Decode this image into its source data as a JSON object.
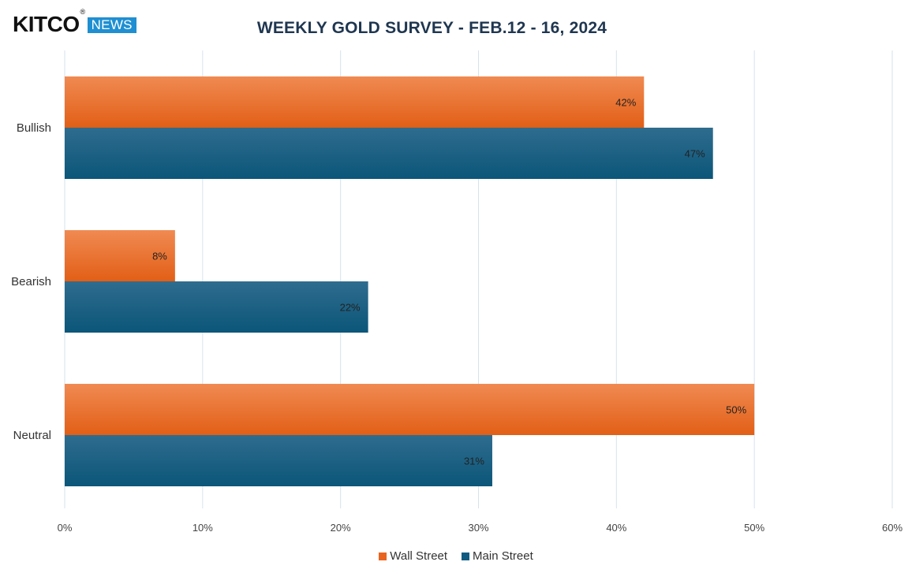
{
  "brand": {
    "name": "KITCO",
    "reg_mark": "®",
    "badge": "NEWS"
  },
  "colors": {
    "wall_street": "#e8641f",
    "main_street": "#0f5a80",
    "title": "#1f3650",
    "grid": "#d6e2ee",
    "badge": "#1f8fd2"
  },
  "chart_data": {
    "type": "bar",
    "orientation": "horizontal",
    "title": "WEEKLY GOLD SURVEY - FEB.12 - 16, 2024",
    "categories": [
      "Bullish",
      "Bearish",
      "Neutral"
    ],
    "series": [
      {
        "name": "Wall Street",
        "values": [
          42,
          8,
          50
        ],
        "labels": [
          "42%",
          "8%",
          "50%"
        ]
      },
      {
        "name": "Main Street",
        "values": [
          47,
          22,
          31
        ],
        "labels": [
          "47%",
          "22%",
          "31%"
        ]
      }
    ],
    "xlim": [
      0,
      60
    ],
    "xticks": [
      0,
      10,
      20,
      30,
      40,
      50,
      60
    ],
    "xtick_labels": [
      "0%",
      "10%",
      "20%",
      "30%",
      "40%",
      "50%",
      "60%"
    ],
    "grid": true,
    "legend_position": "bottom-center"
  }
}
